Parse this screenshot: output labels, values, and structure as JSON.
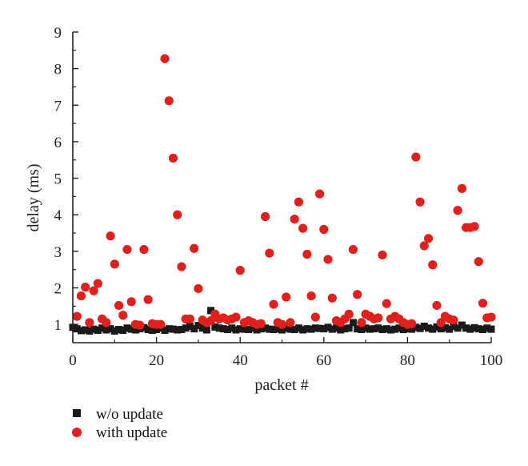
{
  "chart_data": {
    "type": "scatter",
    "xlabel": "packet #",
    "ylabel": "delay (ms)",
    "xlim": [
      0,
      100
    ],
    "ylim": [
      0.5,
      9
    ],
    "x_ticks": [
      "0",
      "20",
      "40",
      "60",
      "80",
      "100"
    ],
    "y_ticks": [
      "1",
      "2",
      "3",
      "4",
      "5",
      "6",
      "7",
      "8",
      "9"
    ],
    "grid": false,
    "legend_position": "bottom-left",
    "series": [
      {
        "name": "w/o update",
        "marker": "square",
        "color": "#1a1a1a",
        "x": [
          0,
          1,
          2,
          3,
          4,
          5,
          6,
          7,
          8,
          9,
          10,
          11,
          12,
          13,
          14,
          15,
          16,
          17,
          18,
          19,
          20,
          21,
          22,
          23,
          24,
          25,
          26,
          27,
          28,
          29,
          30,
          31,
          32,
          33,
          34,
          35,
          36,
          37,
          38,
          39,
          40,
          41,
          42,
          43,
          44,
          45,
          46,
          47,
          48,
          49,
          50,
          51,
          52,
          53,
          54,
          55,
          56,
          57,
          58,
          59,
          60,
          61,
          62,
          63,
          64,
          65,
          66,
          67,
          68,
          69,
          70,
          71,
          72,
          73,
          74,
          75,
          76,
          77,
          78,
          79,
          80,
          81,
          82,
          83,
          84,
          85,
          86,
          87,
          88,
          89,
          90,
          91,
          92,
          93,
          94,
          95,
          96,
          97,
          98,
          99,
          100
        ],
        "y": [
          0.92,
          0.88,
          0.83,
          0.85,
          0.82,
          0.87,
          0.84,
          0.9,
          0.85,
          0.88,
          0.82,
          0.86,
          0.84,
          0.9,
          0.87,
          0.85,
          0.88,
          0.91,
          0.86,
          0.84,
          0.86,
          0.9,
          0.84,
          0.88,
          0.87,
          0.85,
          0.86,
          0.9,
          0.95,
          0.88,
          0.97,
          0.9,
          0.85,
          1.38,
          0.93,
          0.9,
          0.88,
          0.86,
          0.9,
          0.85,
          0.88,
          0.87,
          0.86,
          0.9,
          0.85,
          0.88,
          0.9,
          0.87,
          0.86,
          0.88,
          0.85,
          0.9,
          0.87,
          0.86,
          0.9,
          0.85,
          0.88,
          0.87,
          0.9,
          0.89,
          0.88,
          0.92,
          0.87,
          0.9,
          0.85,
          0.88,
          0.9,
          1.05,
          0.88,
          0.86,
          0.9,
          0.87,
          0.88,
          0.9,
          0.86,
          0.88,
          0.85,
          0.87,
          0.9,
          0.86,
          0.88,
          0.87,
          0.92,
          0.89,
          0.95,
          0.9,
          0.87,
          0.93,
          0.88,
          0.91,
          0.87,
          0.95,
          0.9,
          0.98,
          0.9,
          0.87,
          0.91,
          0.88,
          0.86,
          0.9,
          0.87
        ]
      },
      {
        "name": "with update",
        "marker": "circle",
        "color": "#e0201c",
        "x": [
          1,
          2,
          3,
          4,
          5,
          6,
          7,
          8,
          9,
          10,
          11,
          12,
          13,
          14,
          15,
          16,
          17,
          18,
          19,
          20,
          21,
          22,
          23,
          24,
          25,
          26,
          27,
          28,
          29,
          30,
          31,
          32,
          33,
          34,
          35,
          36,
          37,
          38,
          39,
          40,
          41,
          42,
          43,
          44,
          45,
          46,
          47,
          48,
          49,
          50,
          51,
          52,
          53,
          54,
          55,
          56,
          57,
          58,
          59,
          60,
          61,
          62,
          63,
          64,
          65,
          66,
          67,
          68,
          69,
          70,
          71,
          72,
          73,
          74,
          75,
          76,
          77,
          78,
          79,
          80,
          81,
          82,
          83,
          84,
          85,
          86,
          87,
          88,
          89,
          90,
          91,
          92,
          93,
          94,
          95,
          96,
          97,
          98,
          99,
          100
        ],
        "y": [
          1.22,
          1.78,
          2.02,
          1.05,
          1.92,
          2.12,
          1.15,
          1.05,
          3.42,
          2.65,
          1.52,
          1.25,
          3.05,
          1.62,
          1.0,
          0.98,
          3.05,
          1.68,
          1.02,
          1.0,
          1.0,
          8.27,
          7.12,
          5.55,
          4.0,
          2.58,
          1.15,
          1.15,
          3.08,
          1.98,
          1.12,
          1.05,
          1.1,
          1.28,
          1.15,
          1.18,
          1.12,
          1.15,
          1.2,
          2.48,
          1.05,
          1.1,
          1.05,
          1.0,
          1.02,
          3.95,
          2.95,
          1.55,
          1.05,
          1.0,
          1.75,
          1.05,
          3.88,
          4.35,
          3.63,
          2.92,
          1.78,
          1.2,
          4.57,
          3.6,
          2.78,
          1.72,
          1.1,
          1.05,
          1.15,
          1.28,
          3.05,
          1.82,
          1.05,
          1.28,
          1.22,
          1.15,
          1.18,
          2.9,
          1.57,
          1.15,
          1.22,
          1.15,
          1.05,
          1.0,
          1.02,
          5.58,
          4.35,
          3.15,
          3.35,
          2.63,
          1.52,
          1.05,
          1.22,
          1.15,
          1.12,
          4.12,
          4.72,
          3.65,
          3.65,
          3.68,
          2.72,
          1.58,
          1.18,
          1.2
        ]
      }
    ]
  }
}
